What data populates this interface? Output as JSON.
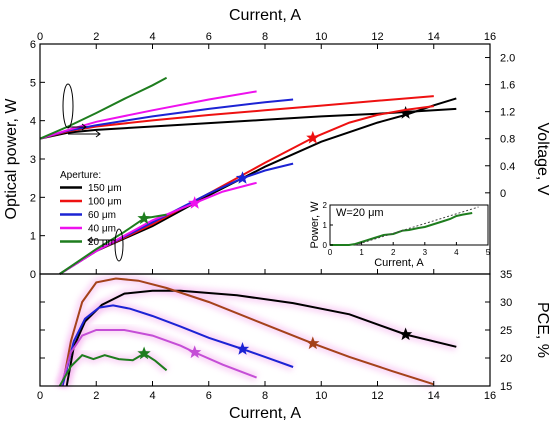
{
  "chart_data": [
    {
      "panel": "top",
      "type": "line",
      "xlabel": "Current, A",
      "ylabel": "Optical power, W",
      "y2label": "Voltage, V",
      "xlim": [
        0,
        16
      ],
      "ylim": [
        0,
        6
      ],
      "y2lim": [
        -1.2,
        2.2
      ],
      "xticks": [
        0,
        2,
        4,
        6,
        8,
        10,
        12,
        14,
        16
      ],
      "yticks": [
        0,
        1,
        2,
        3,
        4,
        5,
        6
      ],
      "y2ticks": [
        0,
        0.4,
        0.8,
        1.2,
        1.6,
        2.0
      ],
      "y2tick_labels": [
        "0",
        "0.4",
        "0.8",
        "1.2",
        "1.6",
        "2.0"
      ],
      "legend_title": "Aperture:",
      "series": [
        {
          "name": "150 μm",
          "color": "#000000",
          "power": {
            "x": [
              0.7,
              2,
              4,
              6,
              8,
              10,
              12,
              13,
              14,
              14.8
            ],
            "y": [
              0,
              0.6,
              1.25,
              2.05,
              2.8,
              3.45,
              3.95,
              4.15,
              4.4,
              4.58
            ]
          },
          "voltage": {
            "x": [
              0,
              1,
              2,
              4,
              6,
              8,
              10,
              12,
              14,
              14.8
            ],
            "y": [
              0.8,
              0.89,
              0.93,
              0.98,
              1.03,
              1.08,
              1.13,
              1.17,
              1.22,
              1.24
            ]
          },
          "star": {
            "x": 13.0,
            "y": 4.2
          }
        },
        {
          "name": "100 μm",
          "color": "#ee1111",
          "power": {
            "x": [
              0.7,
              2,
              4,
              6,
              8,
              9.7,
              11,
              12,
              13,
              14
            ],
            "y": [
              0,
              0.6,
              1.3,
              2.1,
              2.9,
              3.55,
              3.95,
              4.15,
              4.28,
              4.38
            ]
          },
          "voltage": {
            "x": [
              0,
              1,
              2,
              4,
              6,
              8,
              10,
              12,
              14
            ],
            "y": [
              0.8,
              0.91,
              0.98,
              1.07,
              1.15,
              1.22,
              1.29,
              1.36,
              1.43
            ]
          },
          "star": {
            "x": 9.7,
            "y": 3.55
          }
        },
        {
          "name": "60 μm",
          "color": "#1c23d4",
          "power": {
            "x": [
              0.7,
              2,
              4,
              6,
              7.2,
              8,
              9
            ],
            "y": [
              0,
              0.6,
              1.35,
              2.1,
              2.5,
              2.7,
              2.88
            ]
          },
          "voltage": {
            "x": [
              0,
              1,
              2,
              4,
              6,
              8,
              9
            ],
            "y": [
              0.8,
              0.92,
              1.0,
              1.13,
              1.24,
              1.34,
              1.38
            ]
          },
          "star": {
            "x": 7.2,
            "y": 2.5
          }
        },
        {
          "name": "40 μm",
          "color": "#ee11ee",
          "power": {
            "x": [
              0.7,
              2,
              4,
              5.5,
              6.5,
              7.7
            ],
            "y": [
              0,
              0.6,
              1.4,
              1.85,
              2.15,
              2.38
            ]
          },
          "voltage": {
            "x": [
              0,
              1,
              2,
              4,
              6,
              7.7
            ],
            "y": [
              0.8,
              0.93,
              1.05,
              1.22,
              1.38,
              1.5
            ]
          },
          "star": {
            "x": 5.5,
            "y": 1.85
          }
        },
        {
          "name": "20 μm",
          "color": "#1e7d1e",
          "power": {
            "x": [
              0.7,
              2,
              3,
              3.7,
              4.5
            ],
            "y": [
              0,
              0.65,
              1.1,
              1.45,
              1.55
            ]
          },
          "voltage": {
            "x": [
              0,
              1,
              2,
              3,
              4,
              4.5
            ],
            "y": [
              0.8,
              0.98,
              1.18,
              1.39,
              1.59,
              1.7
            ]
          },
          "star": {
            "x": 3.7,
            "y": 1.45
          }
        }
      ]
    },
    {
      "panel": "inset",
      "type": "line",
      "title": "W=20 μm",
      "xlabel": "Current, A",
      "ylabel": "Power, W",
      "xlim": [
        0,
        5
      ],
      "ylim": [
        0,
        2
      ],
      "xticks": [
        0,
        1,
        2,
        3,
        4,
        5
      ],
      "yticks": [
        0,
        1,
        2
      ],
      "series": [
        {
          "color": "#1e7d1e",
          "x": [
            0,
            0.3,
            0.6,
            0.8,
            1.1,
            1.4,
            1.7,
            2.0,
            2.3,
            2.5,
            2.8,
            3.0,
            3.3,
            3.6,
            3.8,
            4.0,
            4.2,
            4.5
          ],
          "y": [
            0,
            0,
            0,
            0.05,
            0.2,
            0.35,
            0.5,
            0.55,
            0.72,
            0.75,
            0.85,
            0.9,
            1.05,
            1.2,
            1.3,
            1.45,
            1.52,
            1.6
          ]
        },
        {
          "color": "#444444",
          "dashed": true,
          "x": [
            0.8,
            4.7
          ],
          "y": [
            0,
            1.9
          ]
        }
      ]
    },
    {
      "panel": "bottom",
      "type": "line",
      "xlabel": "Current, A",
      "y2label": "PCE, %",
      "xlim": [
        0,
        16
      ],
      "ylim": [
        15,
        35
      ],
      "xticks": [
        0,
        2,
        4,
        6,
        8,
        10,
        12,
        14,
        16
      ],
      "yticks": [
        15,
        20,
        25,
        30,
        35
      ],
      "series": [
        {
          "name": "150 μm",
          "color": "#000000",
          "x": [
            0.95,
            1.2,
            1.6,
            2.2,
            3,
            4,
            5,
            7,
            9,
            11,
            13,
            14.8
          ],
          "y": [
            15,
            22,
            26.5,
            29.5,
            31.5,
            32,
            32,
            31.2,
            29.8,
            27.8,
            24.2,
            22
          ],
          "star": {
            "x": 13.0,
            "y": 24.2
          }
        },
        {
          "name": "100 μm",
          "color": "#a4421a",
          "x": [
            0.8,
            1.1,
            1.5,
            2,
            2.7,
            3.5,
            4.5,
            6,
            8,
            9.7,
            11,
            12.5,
            14
          ],
          "y": [
            15,
            23,
            30,
            33.5,
            34.2,
            33.8,
            32.5,
            30,
            26,
            22.6,
            20.2,
            17.7,
            15.3
          ],
          "star": {
            "x": 9.7,
            "y": 22.6
          }
        },
        {
          "name": "60 μm",
          "color": "#1c23d4",
          "x": [
            0.8,
            1.2,
            1.6,
            2.1,
            2.6,
            3.2,
            4,
            5,
            6,
            7.2,
            8,
            9
          ],
          "y": [
            15,
            23,
            27,
            29,
            29.4,
            28.8,
            27.5,
            25.6,
            23.6,
            21.6,
            20.2,
            18.4
          ],
          "star": {
            "x": 7.2,
            "y": 21.6
          }
        },
        {
          "name": "40 μm",
          "color": "#c44ed6",
          "x": [
            0.75,
            1.1,
            1.5,
            2,
            3,
            4,
            5,
            5.5,
            6.5,
            7.7
          ],
          "y": [
            15,
            21,
            24,
            25,
            25,
            24,
            22.2,
            21,
            18.8,
            16.5
          ],
          "star": {
            "x": 5.5,
            "y": 21.0
          }
        },
        {
          "name": "20 μm",
          "color": "#1e7d1e",
          "x": [
            0.7,
            1.1,
            1.5,
            1.9,
            2.3,
            2.8,
            3.3,
            3.7,
            4.1,
            4.5
          ],
          "y": [
            15,
            18.5,
            20.5,
            19.8,
            20.5,
            19.8,
            19.6,
            20.8,
            19.5,
            17.8
          ],
          "star": {
            "x": 3.7,
            "y": 20.8
          }
        }
      ]
    }
  ]
}
